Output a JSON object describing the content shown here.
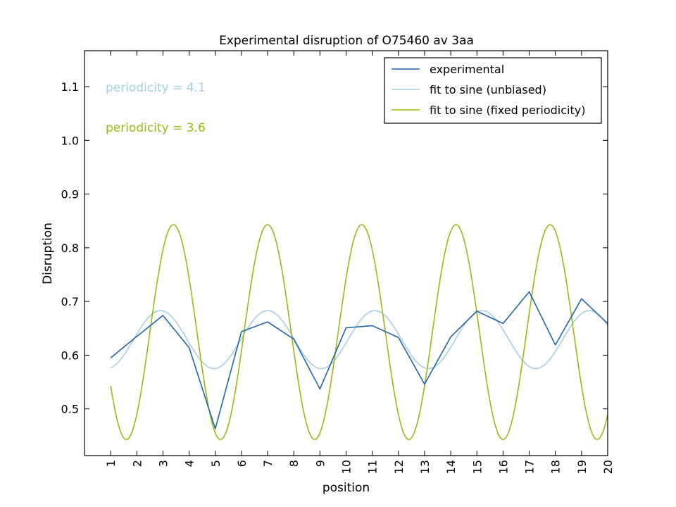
{
  "chart_data": {
    "type": "line",
    "title": "Experimental disruption of O75460 av 3aa",
    "xlabel": "position",
    "ylabel": "Disruption",
    "xlim": [
      0,
      20
    ],
    "ylim": [
      0.413,
      1.167
    ],
    "x_ticks": [
      1,
      2,
      3,
      4,
      5,
      6,
      7,
      8,
      9,
      10,
      11,
      12,
      13,
      14,
      15,
      16,
      17,
      18,
      19,
      20
    ],
    "y_ticks": [
      0.5,
      0.6,
      0.7,
      0.8,
      0.9,
      1.0,
      1.1
    ],
    "y_tick_labels": [
      "0.5",
      "0.6",
      "0.7",
      "0.8",
      "0.9",
      "1.0",
      "1.1"
    ],
    "grid": false,
    "legend_position": "top-right",
    "series": [
      {
        "name": "experimental",
        "color": "#2166ac",
        "kind": "points",
        "x": [
          1,
          2,
          3,
          4,
          5,
          6,
          7,
          8,
          9,
          10,
          11,
          12,
          13,
          14,
          15,
          16,
          17,
          18,
          19,
          20
        ],
        "y": [
          0.595,
          0.635,
          0.674,
          0.614,
          0.463,
          0.644,
          0.662,
          0.63,
          0.537,
          0.651,
          0.655,
          0.633,
          0.546,
          0.634,
          0.682,
          0.659,
          0.718,
          0.619,
          0.705,
          0.659
        ]
      },
      {
        "name": "fit to sine (unbiased)",
        "color": "#a6cee3",
        "kind": "sine",
        "periodicity": 4.1,
        "offset": 0.629,
        "amplitude": 0.054,
        "peak_x": 2.9,
        "x_range": [
          1,
          20
        ]
      },
      {
        "name": "fit to sine (fixed periodicity)",
        "color": "#9ab913",
        "kind": "sine",
        "periodicity": 3.6,
        "offset": 0.643,
        "amplitude": 0.2,
        "peak_x": 3.4,
        "x_range": [
          1,
          20
        ]
      }
    ],
    "annotations": [
      {
        "text": "periodicity = 4.1",
        "color": "#a6cee3"
      },
      {
        "text": "periodicity = 3.6",
        "color": "#9ab913"
      }
    ]
  }
}
